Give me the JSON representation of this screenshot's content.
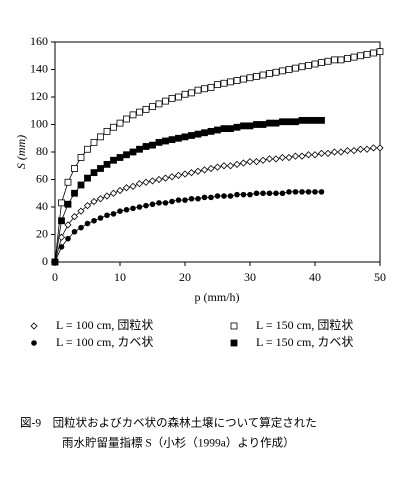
{
  "chart_data": {
    "type": "line",
    "xlabel": "p (mm/h)",
    "ylabel": "S (mm)",
    "xlim": [
      0,
      50
    ],
    "xticks": [
      0,
      10,
      20,
      30,
      40,
      50
    ],
    "ylim": [
      0,
      160
    ],
    "yticks": [
      0,
      20,
      40,
      60,
      80,
      100,
      120,
      140,
      160
    ],
    "x": [
      0,
      1,
      2,
      3,
      4,
      5,
      6,
      7,
      8,
      9,
      10,
      11,
      12,
      13,
      14,
      15,
      16,
      17,
      18,
      19,
      20,
      21,
      22,
      23,
      24,
      25,
      26,
      27,
      28,
      29,
      30,
      31,
      32,
      33,
      34,
      35,
      36,
      37,
      38,
      39,
      40,
      41,
      42,
      43,
      44,
      45,
      46,
      47,
      48,
      49,
      50
    ],
    "series": [
      {
        "name": "L = 100 cm, 団粒状",
        "color": "#000000",
        "marker": "diamond-open",
        "values": [
          0,
          18,
          27,
          33,
          37,
          41,
          44,
          46,
          48,
          50,
          52,
          54,
          55,
          57,
          58,
          59,
          60,
          61,
          62,
          63,
          64,
          65,
          66,
          67,
          68,
          69,
          70,
          70,
          71,
          72,
          73,
          73,
          74,
          75,
          75,
          76,
          76,
          77,
          77,
          78,
          78,
          79,
          79,
          80,
          80,
          81,
          81,
          82,
          82,
          83,
          83
        ]
      },
      {
        "name": "L = 150 cm, 団粒状",
        "color": "#000000",
        "marker": "square-open",
        "values": [
          0,
          43,
          58,
          68,
          76,
          82,
          87,
          91,
          95,
          98,
          101,
          104,
          107,
          109,
          111,
          113,
          115,
          117,
          119,
          120,
          122,
          123,
          125,
          126,
          127,
          129,
          130,
          131,
          132,
          133,
          134,
          135,
          136,
          137,
          138,
          139,
          140,
          141,
          142,
          143,
          144,
          145,
          146,
          147,
          147,
          148,
          149,
          150,
          151,
          152,
          153
        ]
      },
      {
        "name": "L = 100 cm, カベ状",
        "color": "#000000",
        "marker": "circle-filled",
        "values": [
          0,
          11,
          17,
          22,
          25,
          28,
          30,
          32,
          34,
          35,
          37,
          38,
          39,
          40,
          41,
          42,
          43,
          43,
          44,
          45,
          45,
          46,
          46,
          47,
          47,
          48,
          48,
          48,
          49,
          49,
          49,
          50,
          50,
          50,
          50,
          50,
          51,
          51,
          51,
          51,
          51,
          51,
          null,
          null,
          null,
          null,
          null,
          null,
          null,
          null,
          null
        ]
      },
      {
        "name": "L = 150 cm, カベ状",
        "color": "#000000",
        "marker": "square-filled",
        "values": [
          0,
          30,
          42,
          50,
          56,
          61,
          65,
          68,
          71,
          74,
          76,
          78,
          80,
          82,
          84,
          85,
          87,
          88,
          89,
          90,
          91,
          92,
          93,
          94,
          95,
          96,
          97,
          97,
          98,
          99,
          99,
          100,
          100,
          101,
          101,
          102,
          102,
          102,
          103,
          103,
          103,
          103,
          null,
          null,
          null,
          null,
          null,
          null,
          null,
          null,
          null
        ]
      }
    ]
  },
  "caption": [
    "図-9　団粒状およびカベ状の森林土壌について算定された",
    "雨水貯留量指標 S（小杉（1999a）より作成）"
  ]
}
